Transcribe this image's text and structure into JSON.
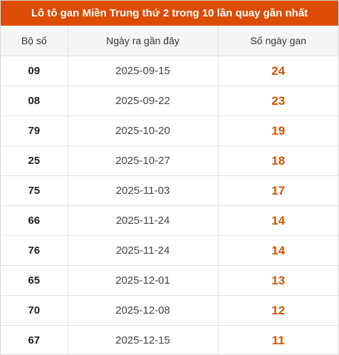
{
  "title": "Lô tô gan Miền Trung thứ 2 trong 10 lần quay gần nhất",
  "columns": [
    "Bộ số",
    "Ngày ra gần đây",
    "Số ngày gan"
  ],
  "colors": {
    "header_bg": "#dc4c04",
    "days_text": "#d35400"
  },
  "rows": [
    {
      "pair": "09",
      "date": "2025-09-15",
      "days": "24"
    },
    {
      "pair": "08",
      "date": "2025-09-22",
      "days": "23"
    },
    {
      "pair": "79",
      "date": "2025-10-20",
      "days": "19"
    },
    {
      "pair": "25",
      "date": "2025-10-27",
      "days": "18"
    },
    {
      "pair": "75",
      "date": "2025-11-03",
      "days": "17"
    },
    {
      "pair": "66",
      "date": "2025-11-24",
      "days": "14"
    },
    {
      "pair": "76",
      "date": "2025-11-24",
      "days": "14"
    },
    {
      "pair": "65",
      "date": "2025-12-01",
      "days": "13"
    },
    {
      "pair": "70",
      "date": "2025-12-08",
      "days": "12"
    },
    {
      "pair": "67",
      "date": "2025-12-15",
      "days": "11"
    }
  ]
}
